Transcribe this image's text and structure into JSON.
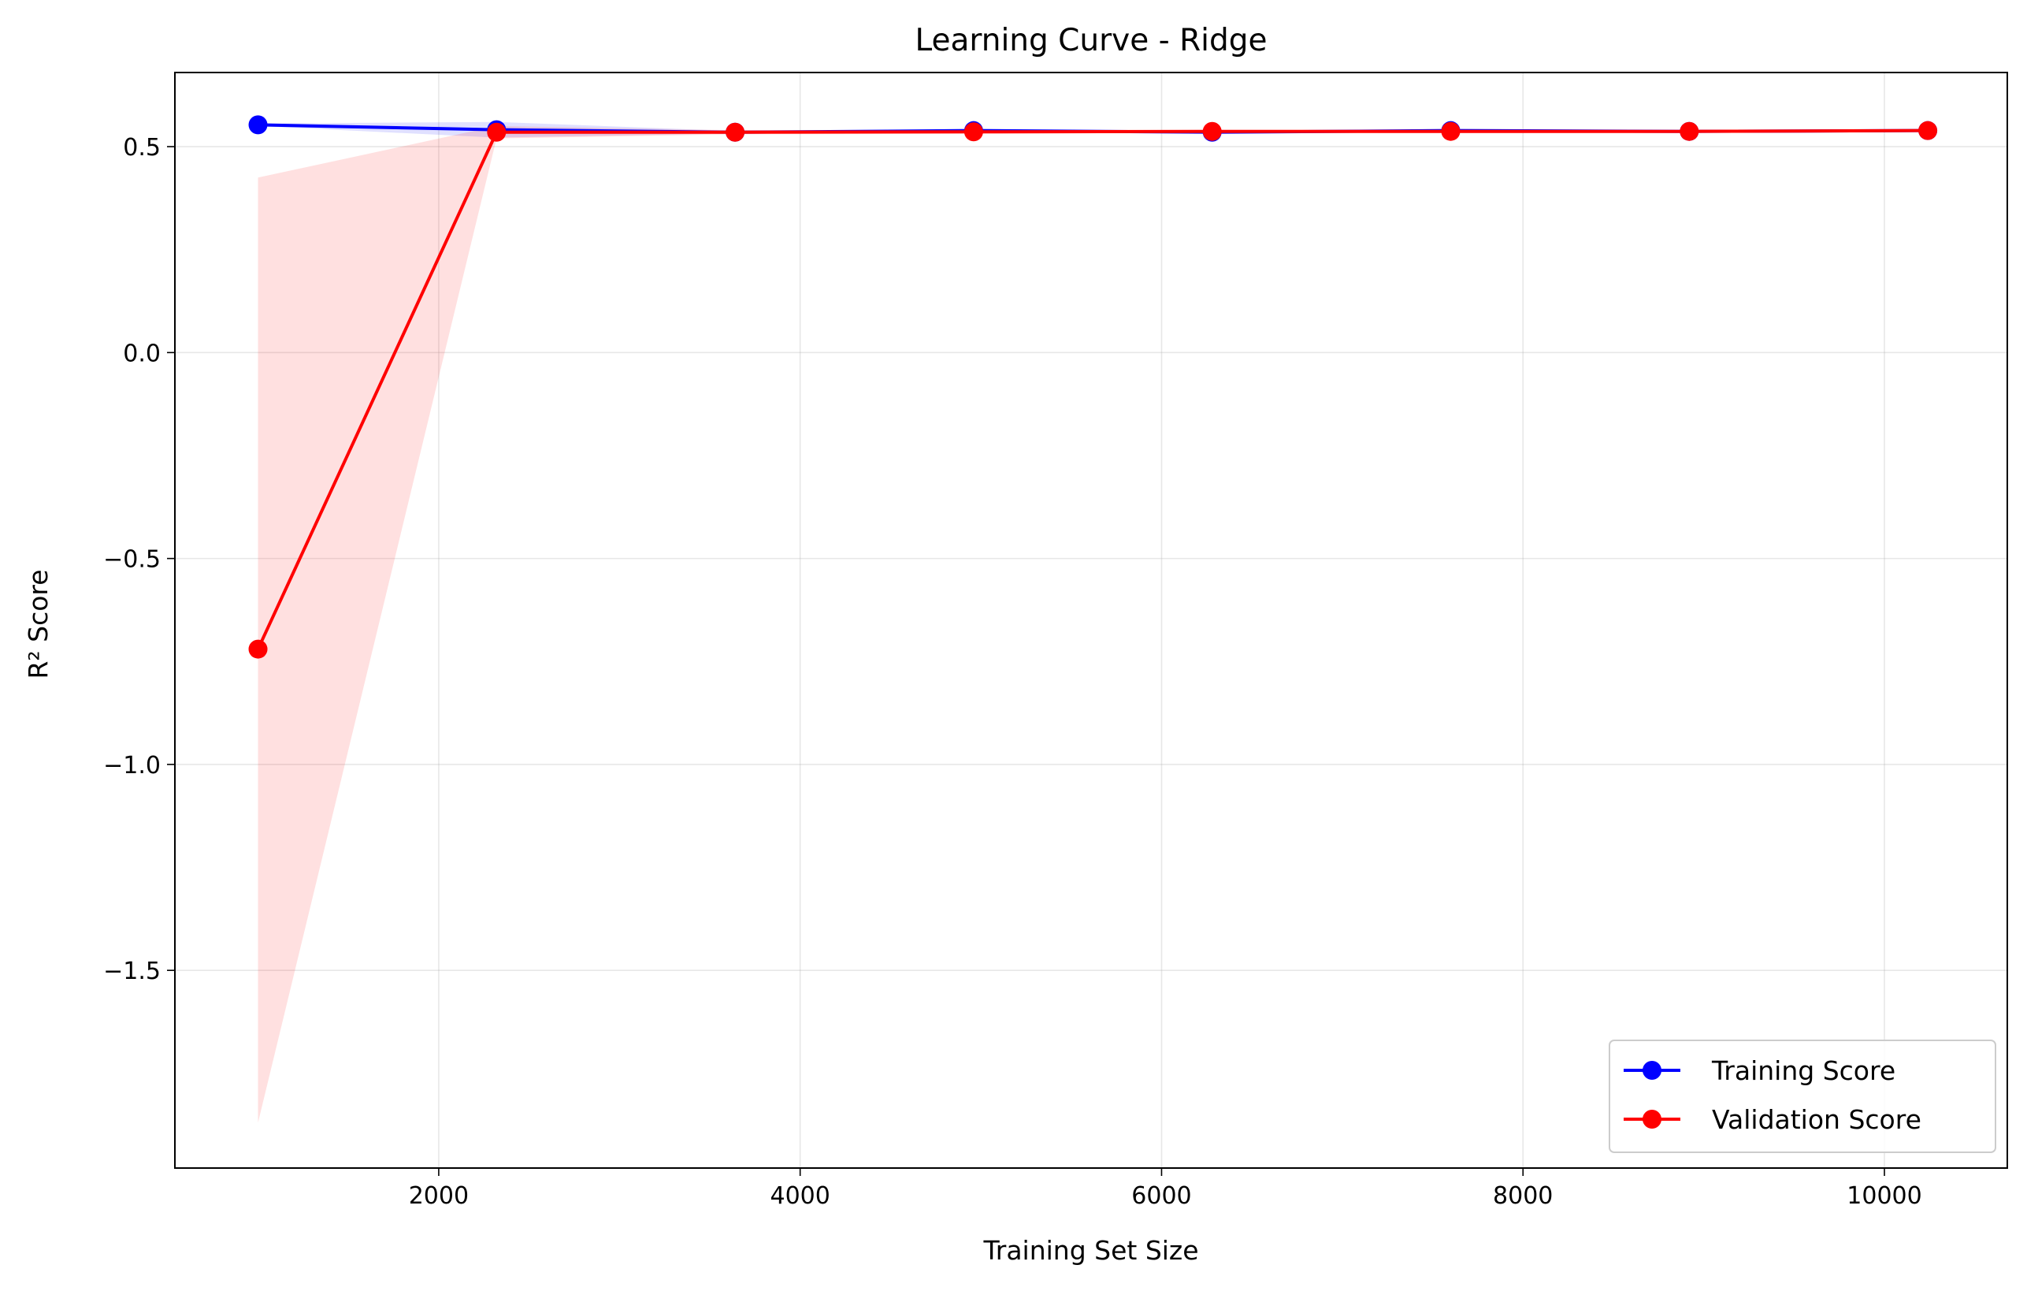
{
  "chart_data": {
    "type": "line",
    "title": "Learning Curve - Ridge",
    "xlabel": "Training Set Size",
    "ylabel": "R² Score",
    "xlim": [
      540,
      10680
    ],
    "ylim": [
      -1.98,
      0.68
    ],
    "xticks": [
      2000,
      4000,
      6000,
      8000,
      10000
    ],
    "yticks": [
      0.5,
      0.0,
      -0.5,
      -1.0,
      -1.5
    ],
    "xtick_labels": [
      "2000",
      "4000",
      "6000",
      "8000",
      "10000"
    ],
    "ytick_labels": [
      "0.5",
      "0.0",
      "−0.5",
      "−1.0",
      "−1.5"
    ],
    "grid": true,
    "legend_position": "lower-right",
    "x": [
      1000,
      2320,
      3640,
      4960,
      6280,
      7600,
      8920,
      10240
    ],
    "series": [
      {
        "name": "Training Score",
        "color": "#0000ff",
        "values": [
          0.553,
          0.541,
          0.535,
          0.539,
          0.535,
          0.539,
          0.537,
          0.539
        ],
        "band_upper": [
          0.556,
          0.56,
          0.538,
          0.541,
          0.537,
          0.541,
          0.539,
          0.541
        ],
        "band_lower": [
          0.55,
          0.522,
          0.532,
          0.537,
          0.533,
          0.537,
          0.535,
          0.537
        ]
      },
      {
        "name": "Validation Score",
        "color": "#ff0000",
        "values": [
          -0.72,
          0.535,
          0.535,
          0.536,
          0.537,
          0.537,
          0.537,
          0.539
        ],
        "band_upper": [
          0.425,
          0.55,
          0.54,
          0.541,
          0.54,
          0.541,
          0.54,
          0.542
        ],
        "band_lower": [
          -1.87,
          0.52,
          0.53,
          0.531,
          0.534,
          0.533,
          0.534,
          0.536
        ]
      }
    ]
  }
}
